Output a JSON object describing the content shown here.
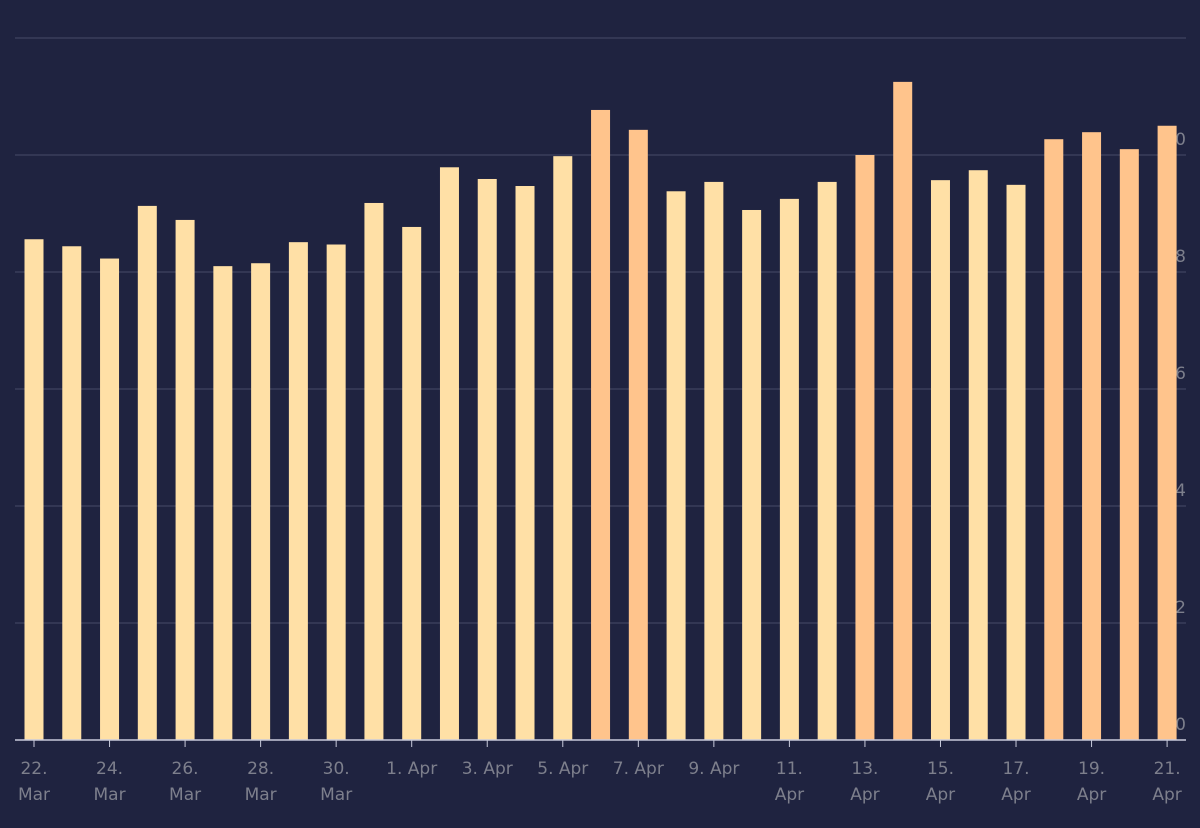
{
  "chart_data": {
    "type": "bar",
    "categories": [
      "22. Mar",
      null,
      "24. Mar",
      null,
      "26. Mar",
      null,
      "28. Mar",
      null,
      "30. Mar",
      null,
      "1. Apr",
      null,
      "3. Apr",
      null,
      "5. Apr",
      null,
      "7. Apr",
      null,
      "9. Apr",
      null,
      "11. Apr",
      null,
      "13. Apr",
      null,
      "15. Apr",
      null,
      "17. Apr",
      null,
      "19. Apr",
      null,
      "21. Apr"
    ],
    "values": [
      8.56,
      8.44,
      8.23,
      9.13,
      8.89,
      8.1,
      8.15,
      8.51,
      8.47,
      9.18,
      8.77,
      9.79,
      9.59,
      9.47,
      9.98,
      10.77,
      10.43,
      9.38,
      9.54,
      9.06,
      9.25,
      9.54,
      10.0,
      11.25,
      9.57,
      9.74,
      9.49,
      10.27,
      10.39,
      10.1,
      10.5
    ],
    "colors": [
      "#ffe0a6",
      "#ffe0a6",
      "#ffe0a6",
      "#ffe0a6",
      "#ffe0a6",
      "#ffe0a6",
      "#ffe0a6",
      "#ffe0a6",
      "#ffe0a6",
      "#ffe0a6",
      "#ffe0a6",
      "#ffe0a6",
      "#ffe0a6",
      "#ffe0a6",
      "#ffe0a6",
      "#ffc48c",
      "#ffc48c",
      "#ffe0a6",
      "#ffe0a6",
      "#ffe0a6",
      "#ffe0a6",
      "#ffe0a6",
      "#ffc48c",
      "#ffc48c",
      "#ffe0a6",
      "#ffe0a6",
      "#ffe0a6",
      "#ffc48c",
      "#ffc48c",
      "#ffc48c",
      "#ffc48c"
    ],
    "ylim": [
      0,
      12
    ],
    "yticks": [
      0,
      2,
      4,
      6,
      8,
      10
    ],
    "grid": true
  }
}
